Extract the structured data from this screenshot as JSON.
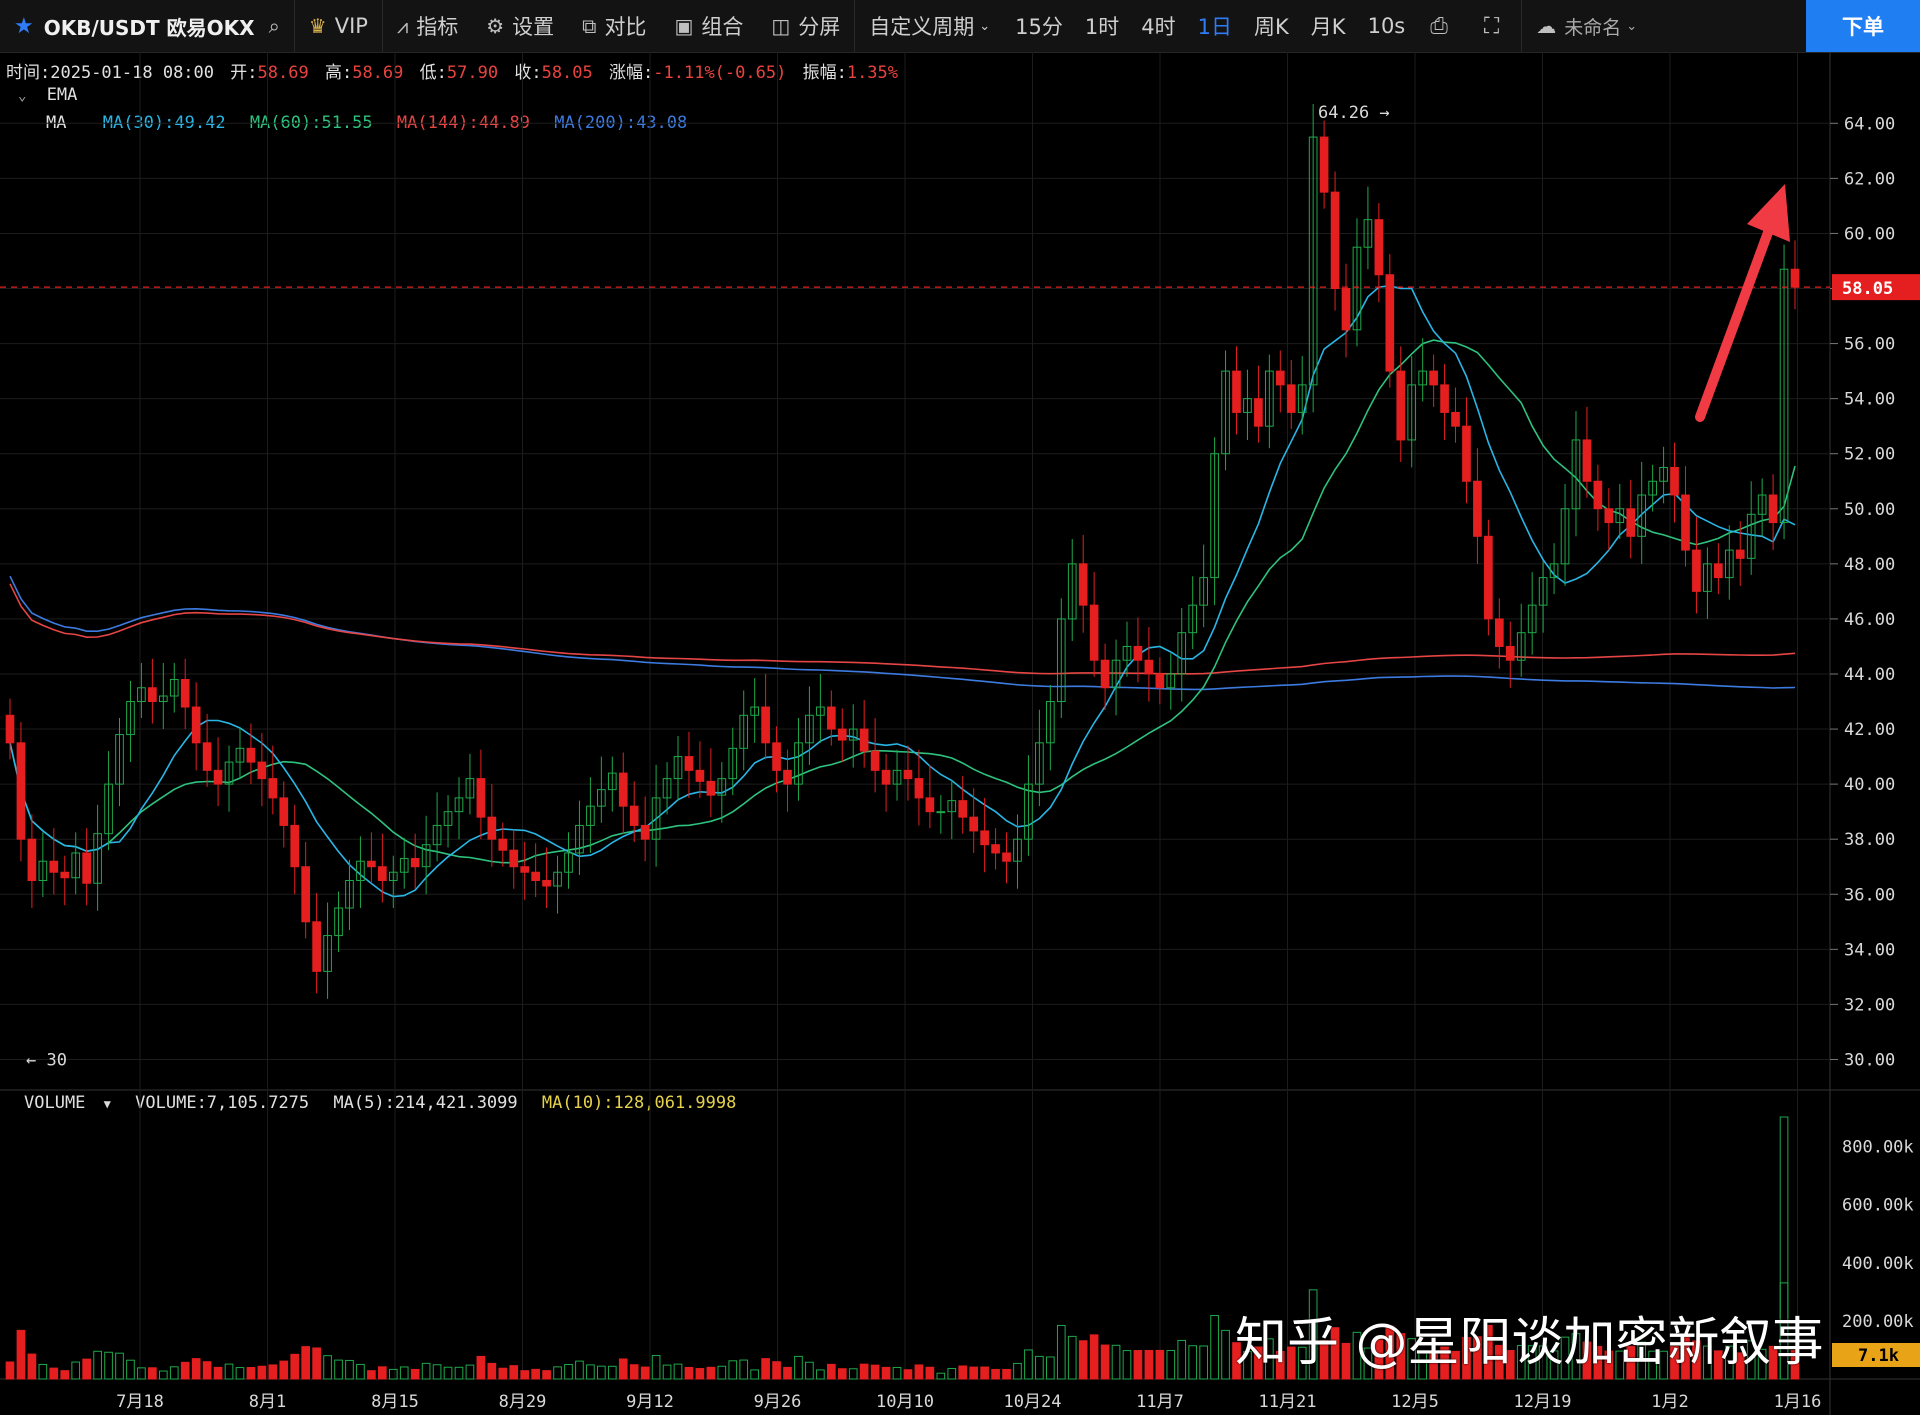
{
  "toolbar": {
    "symbol": "OKB/USDT 欧易OKX",
    "vip": "VIP",
    "indicators": "指标",
    "settings": "设置",
    "compare": "对比",
    "combine": "组合",
    "split": "分屏",
    "custom_period": "自定义周期",
    "periods": [
      "15分",
      "1时",
      "4时",
      "1日",
      "周K",
      "月K",
      "10s"
    ],
    "active_period": "1日",
    "layout_name": "未命名",
    "order_button": "下单"
  },
  "info": {
    "time_label": "时间:",
    "time_value": "2025-01-18 08:00",
    "open_label": "开:",
    "open_value": "58.69",
    "high_label": "高:",
    "high_value": "58.69",
    "low_label": "低:",
    "low_value": "57.90",
    "close_label": "收:",
    "close_value": "58.05",
    "change_label": "涨幅:",
    "change_value": "-1.11%(-0.65)",
    "amp_label": "振幅:",
    "amp_value": "1.35%",
    "ema_label": "EMA",
    "ma_label": "MA",
    "ma30": "MA(30):49.42",
    "ma60": "MA(60):51.55",
    "ma144": "MA(144):44.89",
    "ma200": "MA(200):43.08"
  },
  "volume_info": {
    "label": "VOLUME",
    "volume": "VOLUME:7,105.7275",
    "ma5": "MA(5):214,421.3099",
    "ma10": "MA(10):128,061.9998"
  },
  "colors": {
    "up": "#1fa84a",
    "down": "#e51f1f",
    "ma30": "#29b6e6",
    "ma60": "#2ec27e",
    "ma144": "#e64545",
    "ma200": "#3d7be0",
    "vol_ma10": "#e6d24a"
  },
  "watermark": "知乎 @星阳谈加密新叙事",
  "chart_data": {
    "type": "candlestick",
    "title": "OKB/USDT 欧易OKX",
    "interval": "1日",
    "y_ticks": [
      64,
      62,
      60,
      58,
      56,
      54,
      52,
      50,
      48,
      46,
      44,
      42,
      40,
      38,
      36,
      34,
      32,
      30
    ],
    "y_tick_labels": [
      "64.00",
      "62.00",
      "60.00",
      "58.00",
      "56.00",
      "54.00",
      "52.00",
      "50.00",
      "48.00",
      "46.00",
      "44.00",
      "42.00",
      "40.00",
      "38.00",
      "36.00",
      "34.00",
      "32.00",
      "30.00"
    ],
    "ylim": [
      29,
      65.5
    ],
    "x_labels": [
      "7月18",
      "8月1",
      "8月15",
      "8月29",
      "9月12",
      "9月26",
      "10月10",
      "10月24",
      "11月7",
      "11月21",
      "12月5",
      "12月19",
      "1月2",
      "1月16"
    ],
    "last_price": 58.05,
    "last_price_label": "58.05",
    "high_marker": {
      "value": 64.26,
      "label": "64.26"
    },
    "low_marker": {
      "value": 30,
      "label": "30"
    },
    "price_series": {
      "note": "approximate daily closes read from chart",
      "closes": [
        41.5,
        38.0,
        36.5,
        37.2,
        36.8,
        36.6,
        37.5,
        36.4,
        38.2,
        40.0,
        41.8,
        43.0,
        43.5,
        43.0,
        43.2,
        43.8,
        42.8,
        41.5,
        40.5,
        40.0,
        40.8,
        41.3,
        40.8,
        40.2,
        39.5,
        38.5,
        37.0,
        35.0,
        33.2,
        34.5,
        35.5,
        36.5,
        37.2,
        37.0,
        36.5,
        36.8,
        37.3,
        37.0,
        37.8,
        38.5,
        39.0,
        39.5,
        40.2,
        38.8,
        38.0,
        37.6,
        37.0,
        36.8,
        36.5,
        36.3,
        36.8,
        37.5,
        38.5,
        39.2,
        39.8,
        40.4,
        39.2,
        38.5,
        38.0,
        39.5,
        40.2,
        41.0,
        40.5,
        40.1,
        39.6,
        40.2,
        41.3,
        42.5,
        42.8,
        41.5,
        40.5,
        40.0,
        41.5,
        42.5,
        42.8,
        42.0,
        41.6,
        42.0,
        41.2,
        40.5,
        40.0,
        40.5,
        40.2,
        39.5,
        39.0,
        39.0,
        39.4,
        38.8,
        38.3,
        37.8,
        37.5,
        37.2,
        38.0,
        40.0,
        41.5,
        43.0,
        46.0,
        48.0,
        46.5,
        44.5,
        43.5,
        44.5,
        45.0,
        44.5,
        44.0,
        43.5,
        44.0,
        45.5,
        46.5,
        47.5,
        52.0,
        55.0,
        53.5,
        54.0,
        53.0,
        55.0,
        54.5,
        53.5,
        54.5,
        63.5,
        61.5,
        58.0,
        56.5,
        59.5,
        60.5,
        58.5,
        55.0,
        52.5,
        54.5,
        55.0,
        54.5,
        53.5,
        53.0,
        51.0,
        49.0,
        46.0,
        45.0,
        44.5,
        45.5,
        46.5,
        47.5,
        48.0,
        50.0,
        52.5,
        51.0,
        50.0,
        49.5,
        50.0,
        49.0,
        50.5,
        51.0,
        51.5,
        50.5,
        48.5,
        47.0,
        48.0,
        47.5,
        48.5,
        48.2,
        49.8,
        50.5,
        49.5,
        58.7,
        58.05
      ],
      "ma30_end": 49.42,
      "ma60_end": 51.55,
      "ma144_end": 44.89,
      "ma200_end": 43.08
    },
    "volume_ticks": [
      "800.00k",
      "600.00k",
      "400.00k",
      "200.00k"
    ],
    "volume_tick_values": [
      800000,
      600000,
      400000,
      200000
    ],
    "volume_last_label": "7.1k",
    "volume_peak": 850000
  }
}
